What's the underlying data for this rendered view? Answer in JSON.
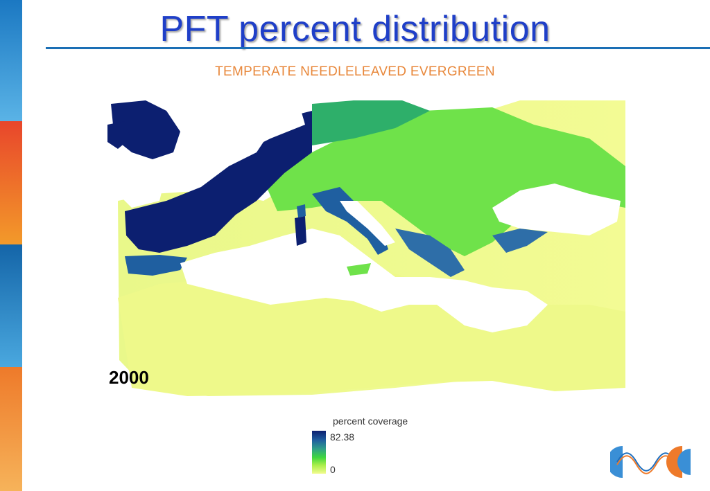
{
  "slide": {
    "title": "PFT percent distribution",
    "subtitle": "TEMPERATE NEEDLELEAVED EVERGREEN",
    "year_label": "2000"
  },
  "legend": {
    "title": "percent coverage",
    "max": "82.38",
    "min": "0"
  },
  "colors": {
    "title": "#1f3fc8",
    "subtitle": "#e8873a",
    "rule": "#1b6fb5",
    "high": "#0c1f70",
    "mid_high": "#1f5fa0",
    "mid": "#2e9e8a",
    "mid_low": "#3fd63f",
    "low": "#f2fb8e"
  }
}
